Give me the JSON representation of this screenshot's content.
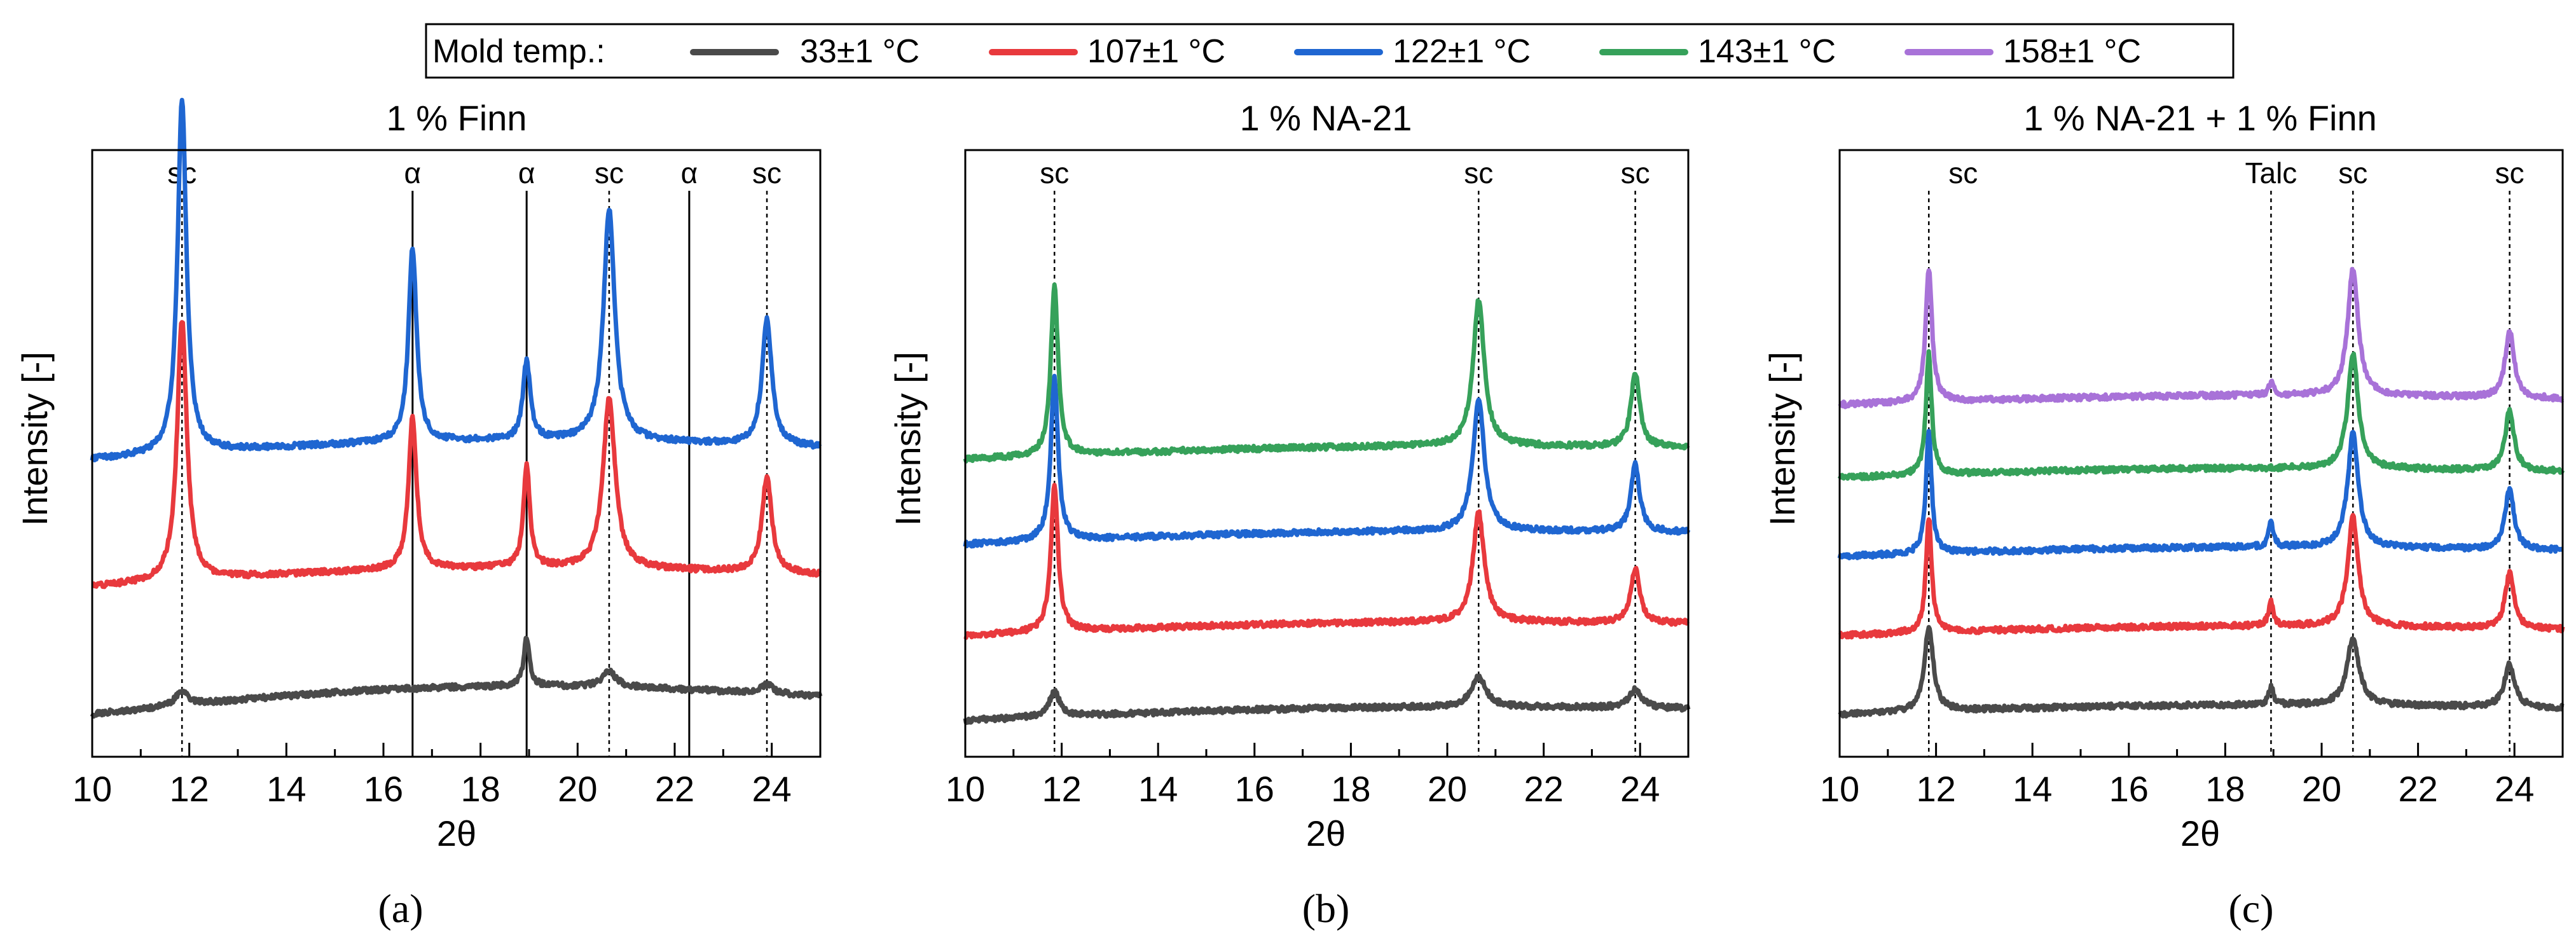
{
  "legend": {
    "label": "Mold temp.:",
    "entries": [
      {
        "key": "33",
        "label": "33±1 °C",
        "color": "#4a4a4a"
      },
      {
        "key": "107",
        "label": "107±1 °C",
        "color": "#e8393d"
      },
      {
        "key": "122",
        "label": "122±1 °C",
        "color": "#1f66d1"
      },
      {
        "key": "143",
        "label": "143±1 °C",
        "color": "#36a15a"
      },
      {
        "key": "158",
        "label": "158±1 °C",
        "color": "#a872d8"
      }
    ]
  },
  "chart_data": [
    {
      "type": "line",
      "panel": "(a)",
      "title": "1 % Finn",
      "xlabel": "2θ",
      "ylabel": "Intensity [-]",
      "xlim": [
        10,
        25
      ],
      "xticks": [
        "10",
        "12",
        "14",
        "16",
        "18",
        "20",
        "22",
        "24"
      ],
      "ylim": [
        0,
        100
      ],
      "yticks": "none (arbitrary units)",
      "reference_lines": [
        {
          "x": 11.85,
          "label": "sc",
          "style": "dotted"
        },
        {
          "x": 16.6,
          "label": "α",
          "style": "solid"
        },
        {
          "x": 18.95,
          "label": "α",
          "style": "solid"
        },
        {
          "x": 20.65,
          "label": "sc",
          "style": "dotted"
        },
        {
          "x": 22.3,
          "label": "α",
          "style": "solid"
        },
        {
          "x": 23.9,
          "label": "sc",
          "style": "dotted"
        }
      ],
      "series": [
        {
          "name": "33±1 °C",
          "key": "33",
          "baseline": 7,
          "baseline_slope": 3,
          "hump": 3,
          "peaks": [
            [
              11.85,
              2.5,
              0.15
            ],
            [
              18.95,
              8,
              0.07
            ],
            [
              20.65,
              2.5,
              0.18
            ],
            [
              23.9,
              1.5,
              0.15
            ]
          ]
        },
        {
          "name": "107±1 °C",
          "key": "107",
          "baseline": 28,
          "baseline_slope": 2,
          "hump": 2,
          "peaks": [
            [
              11.85,
              43,
              0.12
            ],
            [
              16.6,
              25,
              0.1
            ],
            [
              18.95,
              17,
              0.08
            ],
            [
              20.65,
              28,
              0.15
            ],
            [
              23.9,
              16,
              0.12
            ]
          ]
        },
        {
          "name": "122±1 °C",
          "key": "122",
          "baseline": 49,
          "baseline_slope": 2,
          "hump": 2,
          "peaks": [
            [
              11.85,
              58,
              0.11
            ],
            [
              16.6,
              32,
              0.1
            ],
            [
              18.95,
              13,
              0.09
            ],
            [
              20.65,
              38,
              0.14
            ],
            [
              23.9,
              21,
              0.12
            ]
          ]
        }
      ]
    },
    {
      "type": "line",
      "panel": "(b)",
      "title": "1 % NA-21",
      "xlabel": "2θ",
      "ylabel": "Intensity [-]",
      "xlim": [
        10,
        25
      ],
      "xticks": [
        "10",
        "12",
        "14",
        "16",
        "18",
        "20",
        "22",
        "24"
      ],
      "ylim": [
        0,
        100
      ],
      "yticks": "none (arbitrary units)",
      "reference_lines": [
        {
          "x": 11.85,
          "label": "sc",
          "style": "dotted"
        },
        {
          "x": 20.65,
          "label": "sc",
          "style": "dotted"
        },
        {
          "x": 23.9,
          "label": "sc",
          "style": "dotted"
        }
      ],
      "series": [
        {
          "name": "33±1 °C",
          "key": "33",
          "baseline": 6,
          "baseline_slope": 2,
          "hump": 1,
          "peaks": [
            [
              11.85,
              4,
              0.14
            ],
            [
              20.65,
              5,
              0.18
            ],
            [
              23.9,
              3,
              0.15
            ]
          ]
        },
        {
          "name": "107±1 °C",
          "key": "107",
          "baseline": 20,
          "baseline_slope": 2,
          "hump": 1,
          "peaks": [
            [
              11.85,
              24,
              0.09
            ],
            [
              20.65,
              18,
              0.14
            ],
            [
              23.9,
              9,
              0.11
            ]
          ]
        },
        {
          "name": "122±1 °C",
          "key": "122",
          "baseline": 35,
          "baseline_slope": 2,
          "hump": 1,
          "peaks": [
            [
              11.85,
              27,
              0.09
            ],
            [
              20.65,
              22,
              0.14
            ],
            [
              23.9,
              11,
              0.11
            ]
          ]
        },
        {
          "name": "143±1 °C",
          "key": "143",
          "baseline": 49,
          "baseline_slope": 2,
          "hump": 1,
          "peaks": [
            [
              11.85,
              28,
              0.09
            ],
            [
              20.65,
              24,
              0.14
            ],
            [
              23.9,
              12,
              0.11
            ]
          ]
        }
      ]
    },
    {
      "type": "line",
      "panel": "(c)",
      "title": "1 % NA-21 + 1 % Finn",
      "xlabel": "2θ",
      "ylabel": "Intensity [-]",
      "xlim": [
        10,
        25
      ],
      "xticks": [
        "10",
        "12",
        "14",
        "16",
        "18",
        "20",
        "22",
        "24"
      ],
      "ylim": [
        0,
        100
      ],
      "yticks": "none (arbitrary units)",
      "reference_lines": [
        {
          "x": 11.85,
          "label": "sc",
          "style": "dotted"
        },
        {
          "x": 18.95,
          "label": "Talc",
          "style": "dotted"
        },
        {
          "x": 20.65,
          "label": "sc",
          "style": "dotted"
        },
        {
          "x": 23.9,
          "label": "sc",
          "style": "dotted"
        }
      ],
      "series": [
        {
          "name": "33±1 °C",
          "key": "33",
          "baseline": 7,
          "baseline_slope": 1,
          "hump": 1,
          "peaks": [
            [
              11.85,
              14,
              0.11
            ],
            [
              18.95,
              3,
              0.06
            ],
            [
              20.65,
              11,
              0.15
            ],
            [
              23.9,
              7,
              0.13
            ]
          ]
        },
        {
          "name": "107±1 °C",
          "key": "107",
          "baseline": 20,
          "baseline_slope": 1,
          "hump": 1,
          "peaks": [
            [
              11.85,
              19,
              0.07
            ],
            [
              18.95,
              4,
              0.06
            ],
            [
              20.65,
              18,
              0.13
            ],
            [
              23.9,
              9,
              0.11
            ]
          ]
        },
        {
          "name": "122±1 °C",
          "key": "122",
          "baseline": 33,
          "baseline_slope": 1,
          "hump": 1,
          "peaks": [
            [
              11.85,
              20,
              0.07
            ],
            [
              18.95,
              4,
              0.06
            ],
            [
              20.65,
              19,
              0.13
            ],
            [
              23.9,
              10,
              0.11
            ]
          ]
        },
        {
          "name": "143±1 °C",
          "key": "143",
          "baseline": 46,
          "baseline_slope": 1,
          "hump": 1,
          "peaks": [
            [
              11.85,
              20,
              0.07
            ],
            [
              20.65,
              19,
              0.13
            ],
            [
              23.9,
              10,
              0.11
            ]
          ]
        },
        {
          "name": "158±1 °C",
          "key": "158",
          "baseline": 58,
          "baseline_slope": 1,
          "hump": 1,
          "peaks": [
            [
              11.85,
              22,
              0.08
            ],
            [
              18.95,
              2,
              0.06
            ],
            [
              20.65,
              21,
              0.13
            ],
            [
              23.9,
              11,
              0.11
            ]
          ]
        }
      ]
    }
  ]
}
